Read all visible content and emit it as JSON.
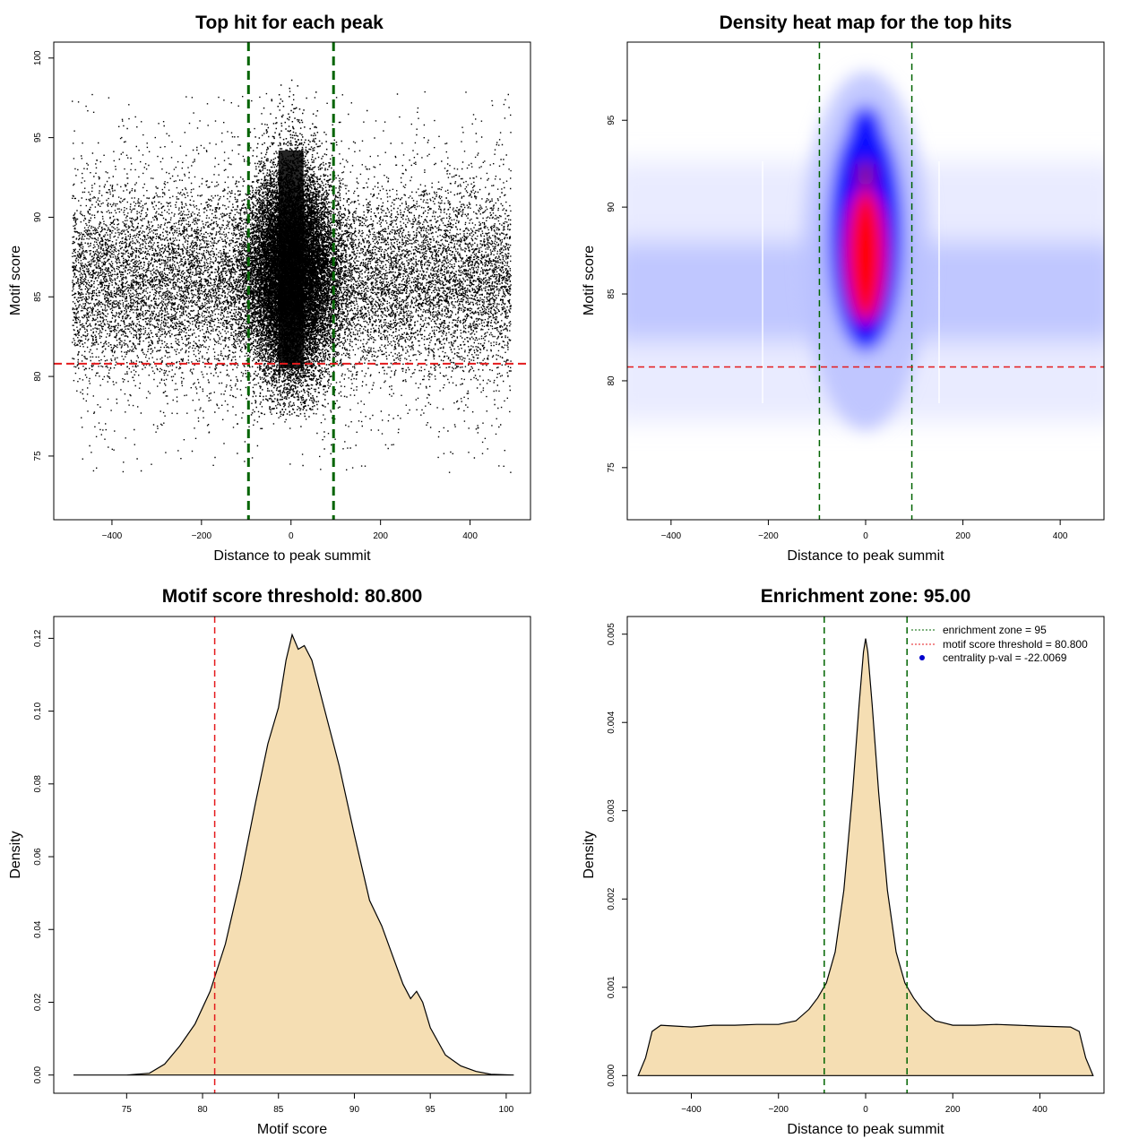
{
  "chart_data": [
    {
      "type": "scatter",
      "title": "Top hit for each peak",
      "xlabel": "Distance to peak summit",
      "ylabel": "Motif score",
      "xlim": [
        -530,
        535
      ],
      "ylim": [
        71,
        101
      ],
      "xticks": [
        -400,
        -200,
        0,
        200,
        400
      ],
      "yticks": [
        75,
        80,
        85,
        90,
        95,
        100
      ],
      "vlines": [
        -95,
        95
      ],
      "hline": 80.8,
      "point_color": "#000000",
      "vline_color": "#006400",
      "hline_color": "#e41a1c"
    },
    {
      "type": "heatmap",
      "title": "Density heat map for the top hits",
      "xlabel": "Distance to peak summit",
      "ylabel": "Motif score",
      "xlim": [
        -490,
        490
      ],
      "ylim": [
        72,
        99.5
      ],
      "xticks": [
        -400,
        -200,
        0,
        200,
        400
      ],
      "yticks": [
        75,
        80,
        85,
        90,
        95
      ],
      "vlines": [
        -95,
        95
      ],
      "hline": 80.8,
      "colors": [
        "#ffffff",
        "#0000ff",
        "#ff0000"
      ]
    },
    {
      "type": "area",
      "title": "Motif score threshold: 80.800",
      "xlabel": "Motif score",
      "ylabel": "Density",
      "xlim": [
        70.2,
        101.6
      ],
      "ylim": [
        -0.005,
        0.126
      ],
      "xticks": [
        75,
        80,
        85,
        90,
        95,
        100
      ],
      "yticks": [
        0.0,
        0.02,
        0.04,
        0.06,
        0.08,
        0.1,
        0.12
      ],
      "ytick_labels": [
        "0.00",
        "0.02",
        "0.04",
        "0.06",
        "0.08",
        "0.10",
        "0.12"
      ],
      "vline": 80.8,
      "fill": "#f5deb3",
      "x": [
        71.5,
        75,
        76.5,
        77.5,
        78.5,
        79.5,
        80.5,
        81.5,
        82.5,
        83.5,
        84.3,
        85.0,
        85.5,
        85.9,
        86.3,
        86.7,
        87.2,
        88.0,
        89.0,
        90.0,
        91.0,
        91.8,
        92.5,
        93.2,
        93.7,
        94.1,
        94.5,
        95.0,
        96.0,
        97.0,
        98.0,
        99.0,
        100.5
      ],
      "y": [
        0.0,
        0.0,
        0.0005,
        0.003,
        0.008,
        0.014,
        0.023,
        0.036,
        0.054,
        0.075,
        0.091,
        0.101,
        0.114,
        0.121,
        0.117,
        0.118,
        0.114,
        0.101,
        0.085,
        0.066,
        0.048,
        0.041,
        0.033,
        0.025,
        0.021,
        0.023,
        0.02,
        0.013,
        0.0055,
        0.0025,
        0.001,
        0.0002,
        0.0
      ]
    },
    {
      "type": "area",
      "title": "Enrichment zone: 95.00",
      "xlabel": "Distance to peak summit",
      "ylabel": "Density",
      "xlim": [
        -547,
        547
      ],
      "ylim": [
        -0.0002,
        0.0052
      ],
      "xticks": [
        -400,
        -200,
        0,
        200,
        400
      ],
      "yticks": [
        0.0,
        0.001,
        0.002,
        0.003,
        0.004,
        0.005
      ],
      "ytick_labels": [
        "0.000",
        "0.001",
        "0.002",
        "0.003",
        "0.004",
        "0.005"
      ],
      "vlines": [
        -95,
        95
      ],
      "fill": "#f5deb3",
      "x": [
        -522,
        -505,
        -490,
        -470,
        -400,
        -350,
        -300,
        -250,
        -200,
        -160,
        -130,
        -110,
        -90,
        -70,
        -50,
        -30,
        -15,
        -5,
        0,
        5,
        15,
        30,
        50,
        70,
        90,
        110,
        130,
        160,
        200,
        250,
        300,
        350,
        400,
        470,
        490,
        505,
        522
      ],
      "y": [
        0.0,
        0.0002,
        0.0005,
        0.00057,
        0.00055,
        0.00057,
        0.00057,
        0.00058,
        0.00058,
        0.00062,
        0.00075,
        0.00088,
        0.00105,
        0.0014,
        0.0021,
        0.0032,
        0.0042,
        0.0048,
        0.00495,
        0.0048,
        0.0042,
        0.0032,
        0.0021,
        0.0014,
        0.00105,
        0.00088,
        0.00075,
        0.00062,
        0.00057,
        0.00057,
        0.00058,
        0.00057,
        0.00056,
        0.00055,
        0.0005,
        0.0002,
        0.0
      ],
      "legend": [
        {
          "label": "enrichment zone = 95",
          "color": "#006400",
          "style": "dotted-line"
        },
        {
          "label": "motif score threshold = 80.800",
          "color": "#e41a1c",
          "style": "dotted-line"
        },
        {
          "label": "centrality p-val = -22.0069",
          "color": "#0000cc",
          "style": "point"
        }
      ]
    }
  ]
}
